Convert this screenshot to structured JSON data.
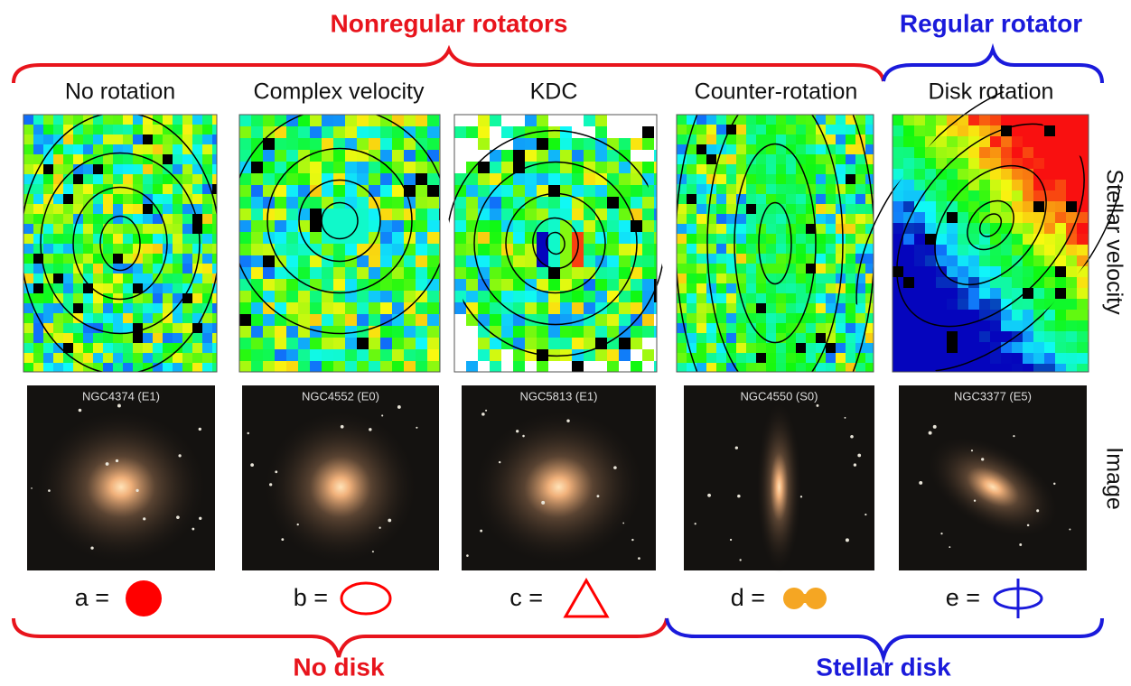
{
  "header": {
    "left_group": "Nonregular rotators",
    "right_group": "Regular rotator"
  },
  "columns": [
    {
      "title": "No rotation",
      "galaxy": "NGC4374 (E1)",
      "symbol_label": "a ="
    },
    {
      "title": "Complex velocity",
      "galaxy": "NGC4552 (E0)",
      "symbol_label": "b ="
    },
    {
      "title": "KDC",
      "galaxy": "NGC5813 (E1)",
      "symbol_label": "c ="
    },
    {
      "title": "Counter-rotation",
      "galaxy": "NGC4550 (S0)",
      "symbol_label": "d ="
    },
    {
      "title": "Disk rotation",
      "galaxy": "NGC3377 (E5)",
      "symbol_label": "e ="
    }
  ],
  "row_labels": {
    "velocity": "Stellar velocity",
    "image": "Image"
  },
  "footer": {
    "left_group": "No disk",
    "right_group": "Stellar disk"
  }
}
